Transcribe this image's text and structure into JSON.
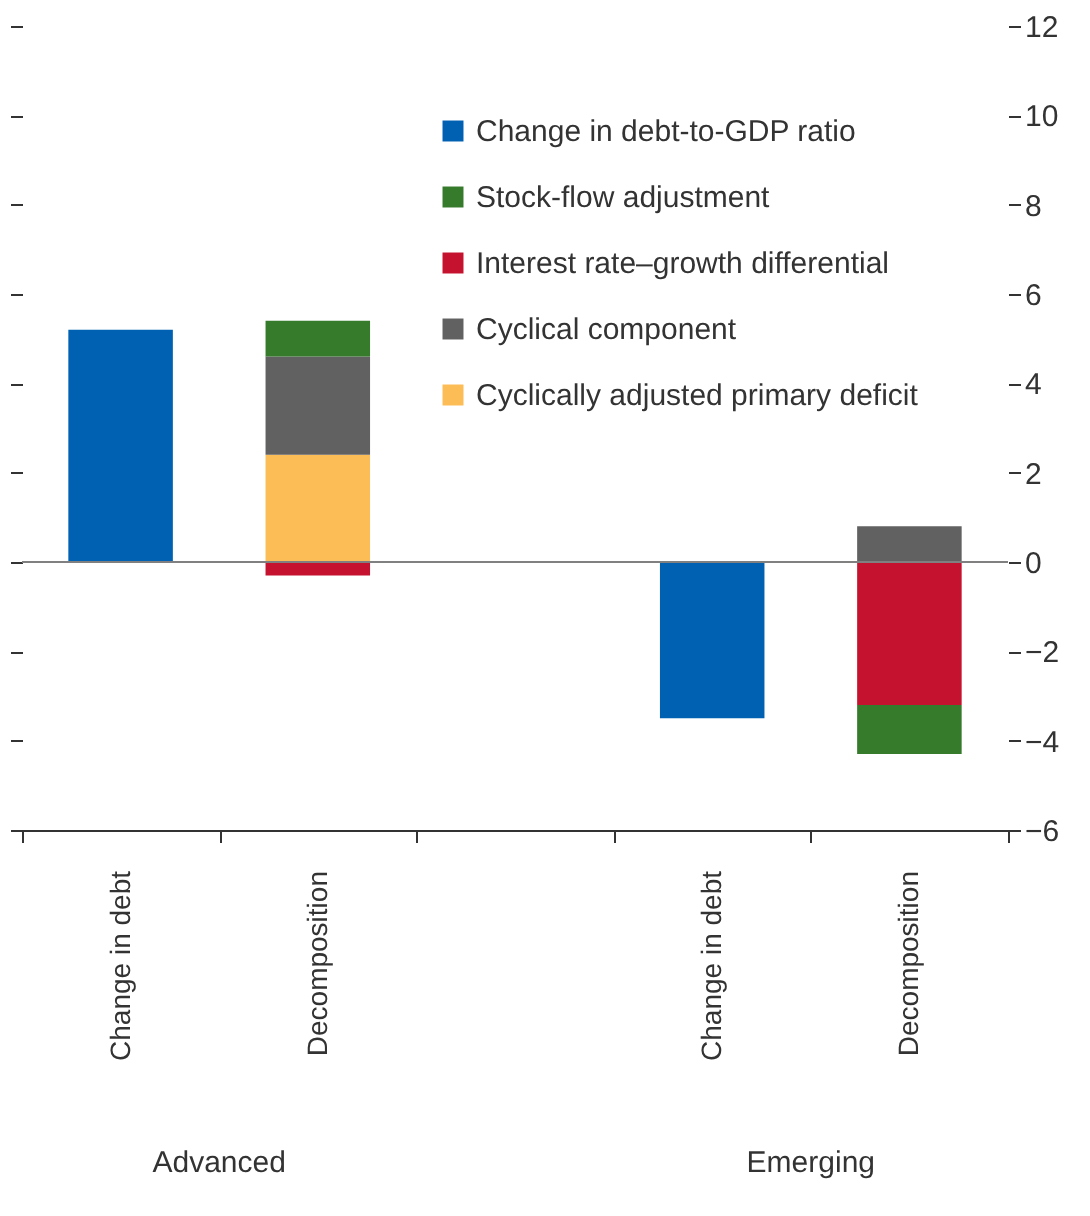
{
  "chart_data": {
    "type": "bar",
    "stacked": true,
    "categories": [
      "Change in debt",
      "Decomposition",
      null,
      "Change in debt",
      "Decomposition"
    ],
    "series": [
      {
        "name": "Cyclically adjusted primary deficit",
        "color": "#fdbd56",
        "values": [
          null,
          2.4,
          null,
          null,
          null
        ]
      },
      {
        "name": "Cyclical component",
        "color": "#616161",
        "values": [
          null,
          2.2,
          null,
          null,
          0.8
        ]
      },
      {
        "name": "Interest rate–growth differential",
        "color": "#c4122f",
        "values": [
          null,
          -0.3,
          null,
          null,
          -3.2
        ]
      },
      {
        "name": "Stock-flow adjustment",
        "color": "#367a2c",
        "values": [
          null,
          0.8,
          null,
          null,
          -1.1
        ]
      },
      {
        "name": "Change in debt-to-GDP ratio",
        "color": "#0060b1",
        "values": [
          5.2,
          null,
          null,
          -3.5,
          null
        ]
      }
    ],
    "ylim": [
      -6,
      12
    ],
    "yticks": [
      {
        "value": -6,
        "label": "−6"
      },
      {
        "value": -4,
        "label": "−4"
      },
      {
        "value": -2,
        "label": "−2"
      },
      0,
      2,
      4,
      6,
      8,
      10,
      12
    ],
    "ref_lines": [
      {
        "axis": "y",
        "value": 0,
        "color": "#808080"
      }
    ],
    "annotations": [
      "Advanced",
      "Emerging"
    ],
    "legend": "top right",
    "grid": false
  }
}
